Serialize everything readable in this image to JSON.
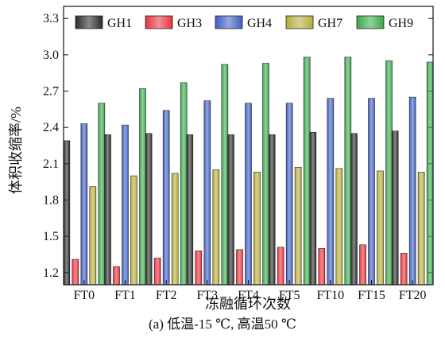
{
  "chart_data": {
    "type": "bar",
    "categories": [
      "FT0",
      "FT1",
      "FT2",
      "FT3",
      "FT4",
      "FT5",
      "FT10",
      "FT15",
      "FT20"
    ],
    "series": [
      {
        "name": "GH1",
        "values": [
          2.29,
          2.34,
          2.35,
          2.34,
          2.34,
          2.34,
          2.36,
          2.35,
          2.37
        ],
        "color": "#2a2a2a"
      },
      {
        "name": "GH3",
        "values": [
          1.31,
          1.25,
          1.32,
          1.38,
          1.39,
          1.41,
          1.4,
          1.43,
          1.36
        ],
        "color": "#e8323c"
      },
      {
        "name": "GH4",
        "values": [
          2.43,
          2.42,
          2.54,
          2.62,
          2.6,
          2.6,
          2.64,
          2.64,
          2.65
        ],
        "color": "#3f5fc0"
      },
      {
        "name": "GH7",
        "values": [
          1.91,
          2.0,
          2.02,
          2.05,
          2.03,
          2.07,
          2.06,
          2.04,
          2.03
        ],
        "color": "#b5ac3a"
      },
      {
        "name": "GH9",
        "values": [
          2.6,
          2.72,
          2.77,
          2.92,
          2.93,
          2.98,
          2.98,
          2.95,
          2.94
        ],
        "color": "#3aa84a"
      }
    ],
    "ylabel": "体积收缩率/%",
    "xlabel": "冻融循环次数",
    "ylim": [
      1.1,
      3.4
    ],
    "yticks": [
      "1.2",
      "1.5",
      "1.8",
      "2.1",
      "2.4",
      "2.7",
      "3.0",
      "3.3"
    ],
    "legend_position": "top"
  },
  "caption": "(a) 低温-15 ℃, 高温50 ℃"
}
